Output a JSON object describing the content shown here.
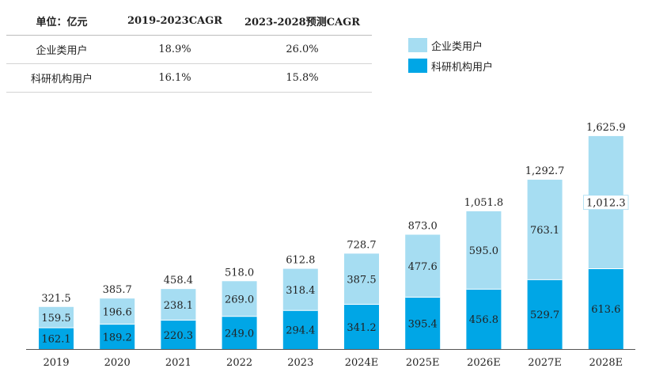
{
  "table": {
    "header": [
      "单位：亿元",
      "2019-2023CAGR",
      "2023-2028预测CAGR"
    ],
    "rows": [
      [
        "企业类用户",
        "18.9%",
        "26.0%"
      ],
      [
        "科研机构用户",
        "16.1%",
        "15.8%"
      ]
    ]
  },
  "colors": {
    "enterprise": "#a6ddf2",
    "research": "#00a6e6"
  },
  "chart_data": {
    "type": "bar",
    "stacked": true,
    "categories": [
      "2019",
      "2020",
      "2021",
      "2022",
      "2023",
      "2024E",
      "2025E",
      "2026E",
      "2027E",
      "2028E"
    ],
    "series": [
      {
        "name": "科研机构用户",
        "values": [
          162.1,
          189.2,
          220.3,
          249.0,
          294.4,
          341.2,
          395.4,
          456.8,
          529.7,
          613.6
        ],
        "labels": [
          "162.1",
          "189.2",
          "220.3",
          "249.0",
          "294.4",
          "341.2",
          "395.4",
          "456.8",
          "529.7",
          "613.6"
        ]
      },
      {
        "name": "企业类用户",
        "values": [
          159.5,
          196.6,
          238.1,
          269.0,
          318.4,
          387.5,
          477.6,
          595.0,
          763.1,
          1012.3
        ],
        "labels": [
          "159.5",
          "196.6",
          "238.1",
          "269.0",
          "318.4",
          "387.5",
          "477.6",
          "595.0",
          "763.1",
          "1,012.3"
        ]
      }
    ],
    "totals": [
      321.5,
      385.7,
      458.4,
      518.0,
      612.8,
      728.7,
      873.0,
      1051.8,
      1292.7,
      1625.9
    ],
    "total_labels": [
      "321.5",
      "385.7",
      "458.4",
      "518.0",
      "612.8",
      "728.7",
      "873.0",
      "1,051.8",
      "1,292.7",
      "1,625.9"
    ],
    "legend": [
      "企业类用户",
      "科研机构用户"
    ],
    "unit": "亿元",
    "ylim": [
      0,
      1700
    ],
    "y_axis_visible": false
  }
}
